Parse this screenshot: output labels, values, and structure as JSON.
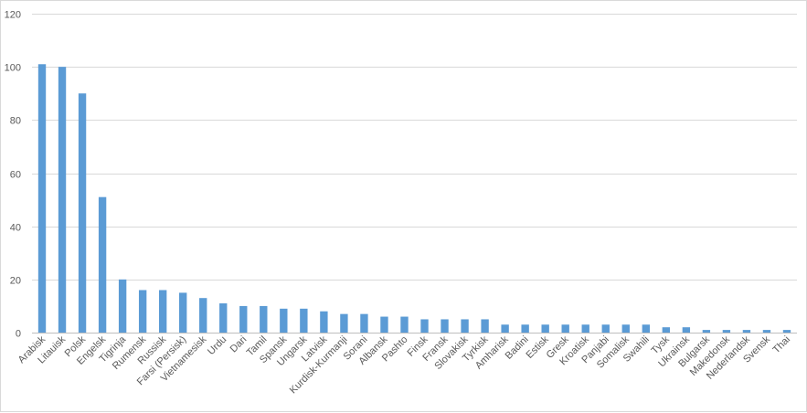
{
  "chart_data": {
    "type": "bar",
    "title": "",
    "xlabel": "",
    "ylabel": "",
    "ylim": [
      0,
      120
    ],
    "yticks": [
      0,
      20,
      40,
      60,
      80,
      100,
      120
    ],
    "grid": true,
    "bar_color": "#5b9bd5",
    "categories": [
      "Arabisk",
      "Litauisk",
      "Polsk",
      "Engelsk",
      "Tigrinja",
      "Rumensk",
      "Russisk",
      "Farsi (Persisk)",
      "Vietnamesisk",
      "Urdu",
      "Dari",
      "Tamil",
      "Spansk",
      "Ungarsk",
      "Latvisk",
      "Kurdisk-Kurmanji",
      "Sorani",
      "Albansk",
      "Pashto",
      "Finsk",
      "Fransk",
      "Slovakisk",
      "Tyrkisk",
      "Amharisk",
      "Badini",
      "Estisk",
      "Gresk",
      "Kroatisk",
      "Panjabi",
      "Somalisk",
      "Swahili",
      "Tysk",
      "Ukrainsk",
      "Bulgarsk",
      "Makedonsk",
      "Nederlandsk",
      "Svensk",
      "Thai"
    ],
    "values": [
      101,
      100,
      90,
      51,
      20,
      16,
      16,
      15,
      13,
      11,
      10,
      10,
      9,
      9,
      8,
      7,
      7,
      6,
      6,
      5,
      5,
      5,
      5,
      3,
      3,
      3,
      3,
      3,
      3,
      3,
      3,
      2,
      2,
      1,
      1,
      1,
      1,
      1
    ]
  }
}
